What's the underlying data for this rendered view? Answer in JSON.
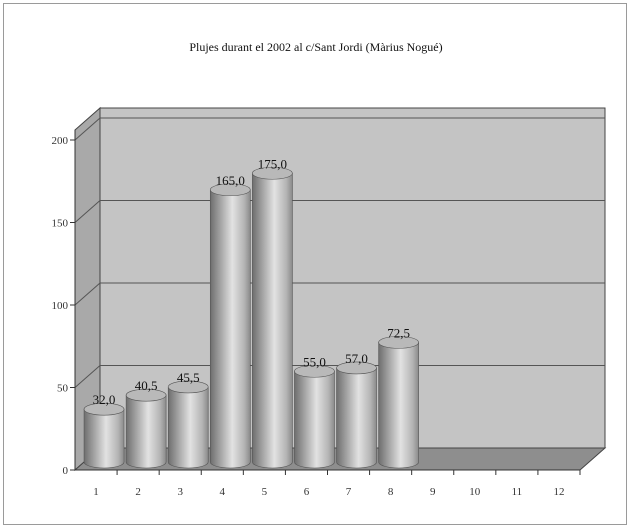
{
  "chart_data": {
    "type": "bar",
    "title": "Plujes durant el 2002 al c/Sant Jordi (Màrius Nogué)",
    "xlabel": "",
    "ylabel": "",
    "categories": [
      "1",
      "2",
      "3",
      "4",
      "5",
      "6",
      "7",
      "8",
      "9",
      "10",
      "11",
      "12"
    ],
    "values": [
      32.0,
      40.5,
      45.5,
      165.0,
      175.0,
      55.0,
      57.0,
      72.5,
      null,
      null,
      null,
      null
    ],
    "data_labels": [
      "32,0",
      "40,5",
      "45,5",
      "165,0",
      "175,0",
      "55,0",
      "57,0",
      "72,5",
      "",
      "",
      "",
      ""
    ],
    "yticks": [
      "0",
      "50",
      "100",
      "150",
      "200"
    ],
    "ylim": [
      0,
      200
    ],
    "grid": true,
    "legend": "none",
    "style": "3d-cylinder",
    "colors": {
      "wall": "#c4c4c4",
      "floor": "#8e8e8e",
      "bar_dark": "#7c7c7c",
      "bar_light": "#e8e8e8",
      "grid": "#555555"
    }
  }
}
